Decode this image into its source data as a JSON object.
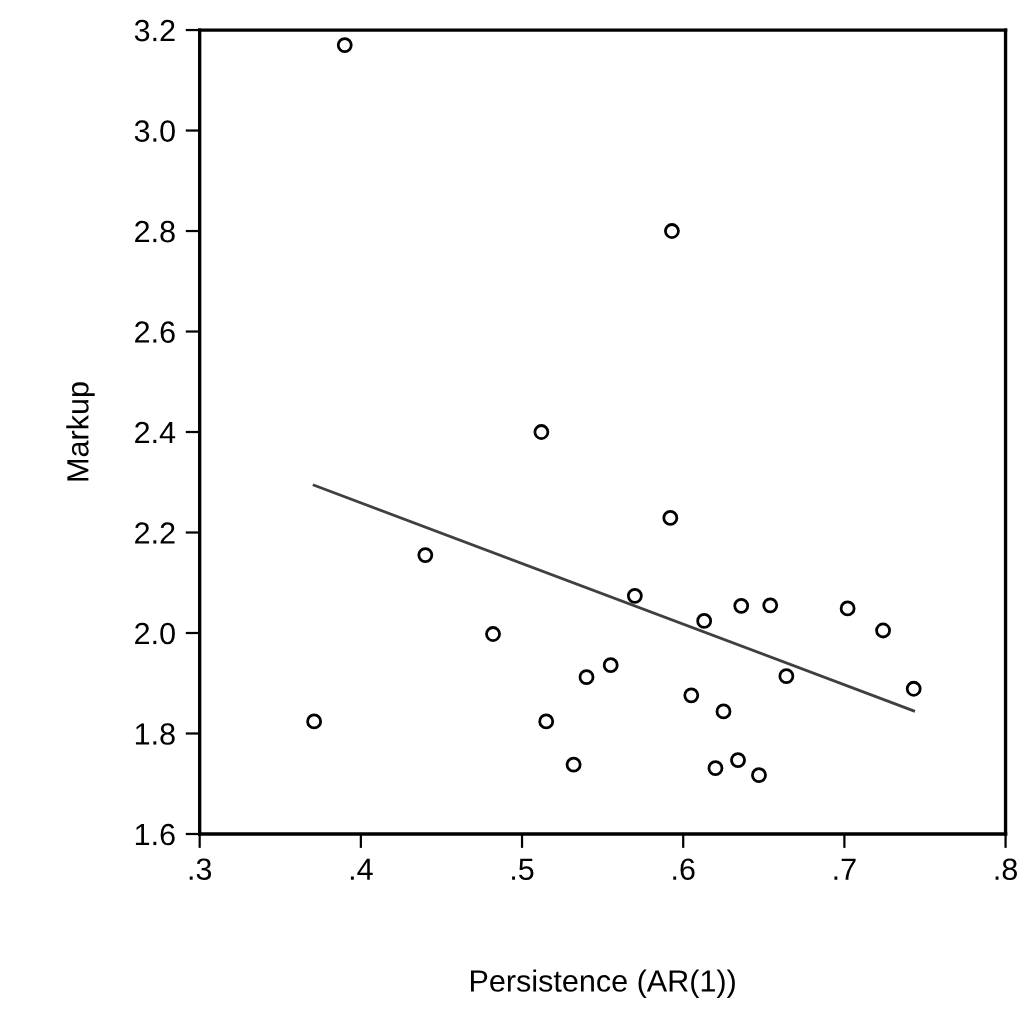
{
  "chart_data": {
    "type": "scatter",
    "xlabel": "Persistence (AR(1))",
    "ylabel": "Markup",
    "xlim": [
      0.3,
      0.8
    ],
    "ylim": [
      1.6,
      3.2
    ],
    "xticks": [
      {
        "value": 0.3,
        "label": ".3"
      },
      {
        "value": 0.4,
        "label": ".4"
      },
      {
        "value": 0.5,
        "label": ".5"
      },
      {
        "value": 0.6,
        "label": ".6"
      },
      {
        "value": 0.7,
        "label": ".7"
      },
      {
        "value": 0.8,
        "label": ".8"
      }
    ],
    "yticks": [
      {
        "value": 1.6,
        "label": "1.6"
      },
      {
        "value": 1.8,
        "label": "1.8"
      },
      {
        "value": 2.0,
        "label": "2.0"
      },
      {
        "value": 2.2,
        "label": "2.2"
      },
      {
        "value": 2.4,
        "label": "2.4"
      },
      {
        "value": 2.6,
        "label": "2.6"
      },
      {
        "value": 2.8,
        "label": "2.8"
      },
      {
        "value": 3.0,
        "label": "3.0"
      },
      {
        "value": 3.2,
        "label": "3.2"
      }
    ],
    "grid": false,
    "legend": false,
    "series": [
      {
        "color": "#000000",
        "marker": "circle",
        "x": [
          0.39,
          0.512,
          0.593,
          0.44,
          0.482,
          0.371,
          0.515,
          0.54,
          0.532,
          0.555,
          0.592,
          0.57,
          0.613,
          0.636,
          0.654,
          0.702,
          0.724,
          0.743,
          0.664,
          0.605,
          0.625,
          0.62,
          0.634,
          0.647
        ],
        "values": [
          3.17,
          2.4,
          2.8,
          2.155,
          1.998,
          1.824,
          1.824,
          1.912,
          1.738,
          1.936,
          2.229,
          2.074,
          2.024,
          2.054,
          2.055,
          2.049,
          2.005,
          1.889,
          1.914,
          1.876,
          1.844,
          1.731,
          1.747,
          1.717
        ]
      },
      {
        "type": "line",
        "color": "#404040",
        "marker": "none",
        "line_style": "solid",
        "x": [
          0.371,
          0.743
        ],
        "values": [
          2.294,
          1.845
        ]
      }
    ]
  }
}
